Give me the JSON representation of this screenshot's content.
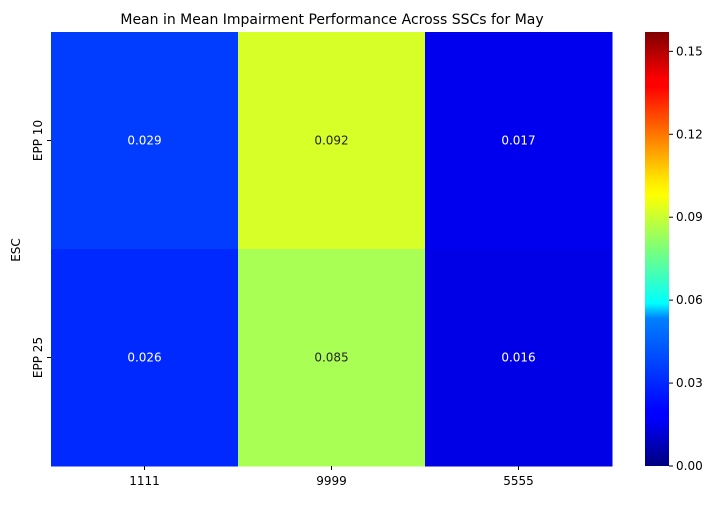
{
  "chart_data": {
    "type": "heatmap",
    "title": "Mean in Mean Impairment Performance Across SSCs for May",
    "xlabel": "",
    "ylabel": "ESC",
    "x_categories": [
      "1111",
      "9999",
      "5555"
    ],
    "y_categories": [
      "EPP 10",
      "EPP 25"
    ],
    "values": [
      [
        0.029,
        0.092,
        0.017
      ],
      [
        0.026,
        0.085,
        0.016
      ]
    ],
    "cell_labels": [
      [
        "0.029",
        "0.092",
        "0.017"
      ],
      [
        "0.026",
        "0.085",
        "0.016"
      ]
    ],
    "colormap": "jet",
    "colorbar": {
      "range": [
        0.0,
        0.157
      ],
      "ticks": [
        0.0,
        0.03,
        0.06,
        0.09,
        0.12,
        0.15
      ],
      "tick_labels": [
        "0.00",
        "0.03",
        "0.06",
        "0.09",
        "0.12",
        "0.15"
      ]
    },
    "grid": false
  }
}
